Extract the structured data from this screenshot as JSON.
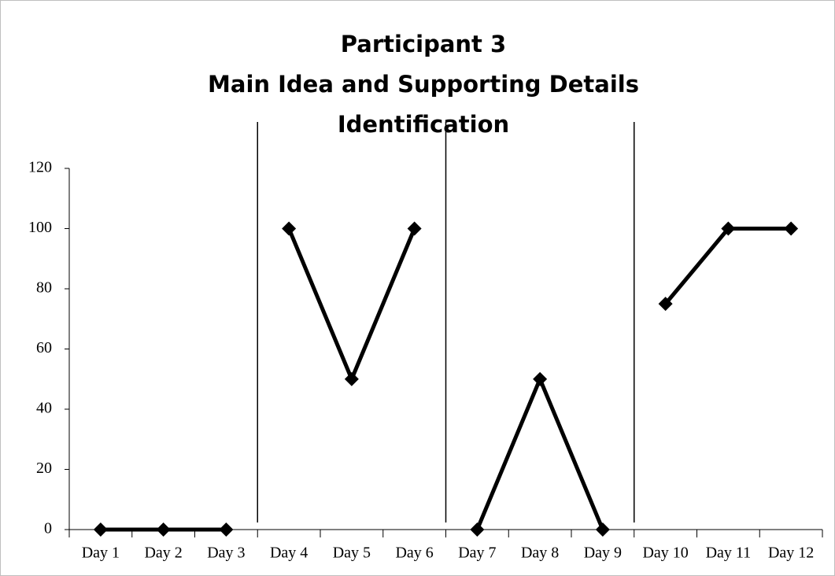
{
  "chart_data": {
    "type": "line",
    "title": [
      "Participant 3",
      "Main Idea and Supporting Details",
      "Identification"
    ],
    "categories": [
      "Day 1",
      "Day 2",
      "Day 3",
      "Day 4",
      "Day 5",
      "Day 6",
      "Day 7",
      "Day 8",
      "Day 9",
      "Day 10",
      "Day 11",
      "Day 12"
    ],
    "series": [
      {
        "color": "#000000",
        "values": [
          0,
          0,
          0,
          null,
          null,
          null,
          null,
          null,
          null,
          null,
          null,
          null
        ]
      },
      {
        "color": "#000000",
        "values": [
          null,
          null,
          null,
          100,
          50,
          100,
          null,
          null,
          null,
          null,
          null,
          null
        ]
      },
      {
        "color": "#000000",
        "values": [
          null,
          null,
          null,
          null,
          null,
          null,
          0,
          50,
          0,
          null,
          null,
          null
        ]
      },
      {
        "color": "#000000",
        "values": [
          null,
          null,
          null,
          null,
          null,
          null,
          null,
          null,
          null,
          75,
          100,
          100
        ]
      }
    ],
    "ylim": [
      0,
      120
    ],
    "yticks": [
      0,
      20,
      40,
      60,
      80,
      100,
      120
    ],
    "grid": false
  }
}
